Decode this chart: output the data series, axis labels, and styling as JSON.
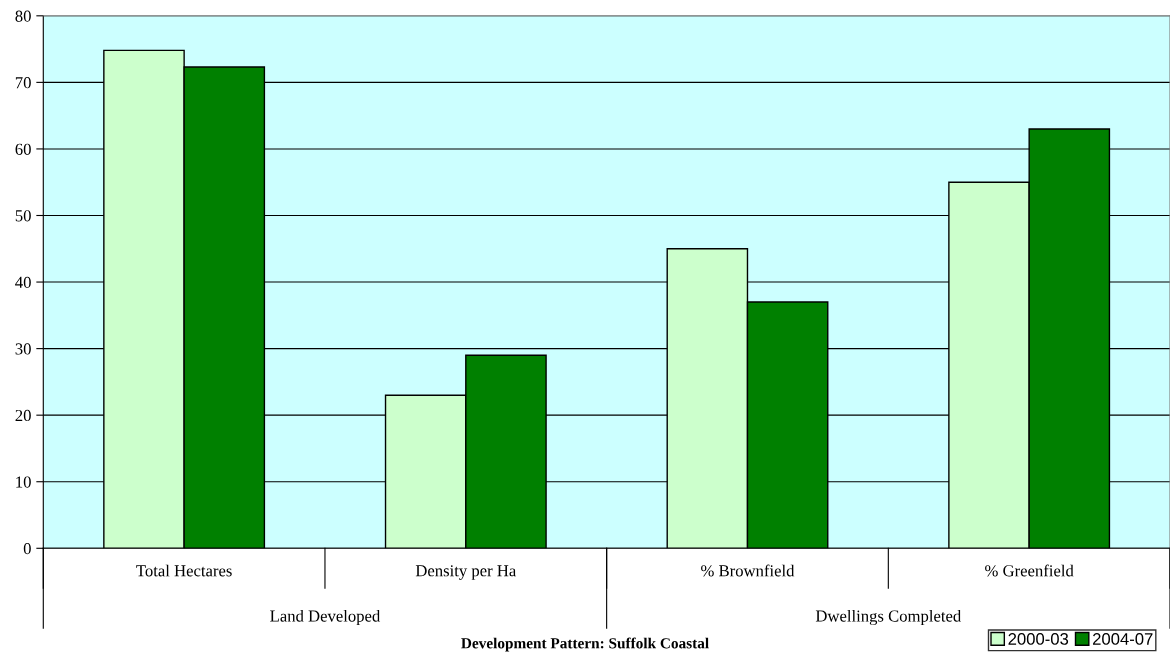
{
  "chart_data": {
    "type": "bar",
    "title": "Development Pattern: Suffolk Coastal",
    "categories": [
      "Total Hectares",
      "Density per Ha",
      "% Brownfield",
      "% Greenfield"
    ],
    "series": [
      {
        "name": "2000-03",
        "color": "#ccffcc",
        "values": [
          74.8,
          23,
          45,
          55
        ]
      },
      {
        "name": "2004-07",
        "color": "#008000",
        "values": [
          72.3,
          29,
          37,
          63
        ]
      }
    ],
    "annotations": [
      "Land Developed",
      "Dwellings Completed"
    ],
    "ylim": [
      0,
      80
    ],
    "yticks": [
      0,
      10,
      20,
      30,
      40,
      50,
      60,
      70,
      80
    ],
    "grid": "y",
    "legend": "bottom right"
  }
}
